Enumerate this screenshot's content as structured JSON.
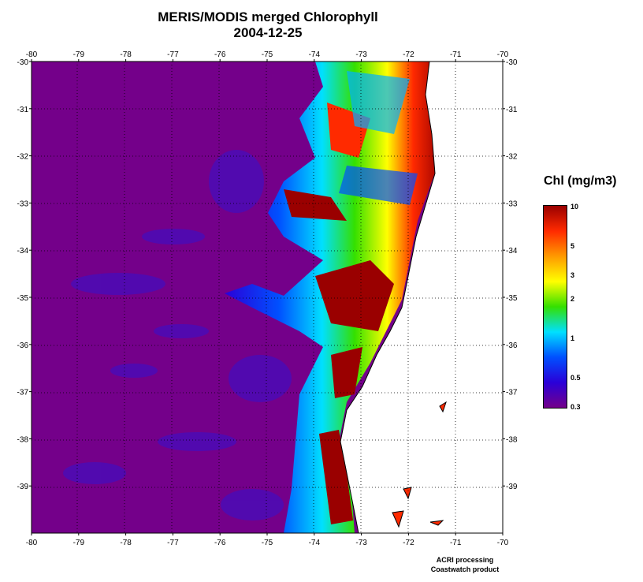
{
  "title": {
    "line1": "MERIS/MODIS merged Chlorophyll",
    "line2": "2004-12-25"
  },
  "map": {
    "lon_ticks": [
      "-80",
      "-79",
      "-78",
      "-77",
      "-76",
      "-75",
      "-74",
      "-73",
      "-72",
      "-71",
      "-70"
    ],
    "lat_ticks": [
      "-30",
      "-31",
      "-32",
      "-33",
      "-34",
      "-35",
      "-36",
      "-37",
      "-38",
      "-39"
    ],
    "lon_range": [
      -80,
      -70
    ],
    "lat_range": [
      -30,
      -40
    ],
    "grid": "dotted",
    "colors": {
      "ocean_low": "#74008a",
      "land": "#ffffff",
      "coastline": "#000000"
    }
  },
  "colorbar": {
    "title": "Chl (mg/m3)",
    "ticks": [
      "10",
      "5",
      "3",
      "2",
      "1",
      "0.5",
      "0.3"
    ],
    "tick_values": [
      10,
      5,
      3,
      2,
      1,
      0.5,
      0.3
    ],
    "scale": "log",
    "colors": [
      "#9a0000",
      "#ff2a00",
      "#ff9a00",
      "#ffff00",
      "#34e000",
      "#00e0ff",
      "#0050ff",
      "#2a00d8",
      "#74008a"
    ]
  },
  "credit": {
    "line1": "ACRI processing",
    "line2": "Coastwatch product"
  }
}
